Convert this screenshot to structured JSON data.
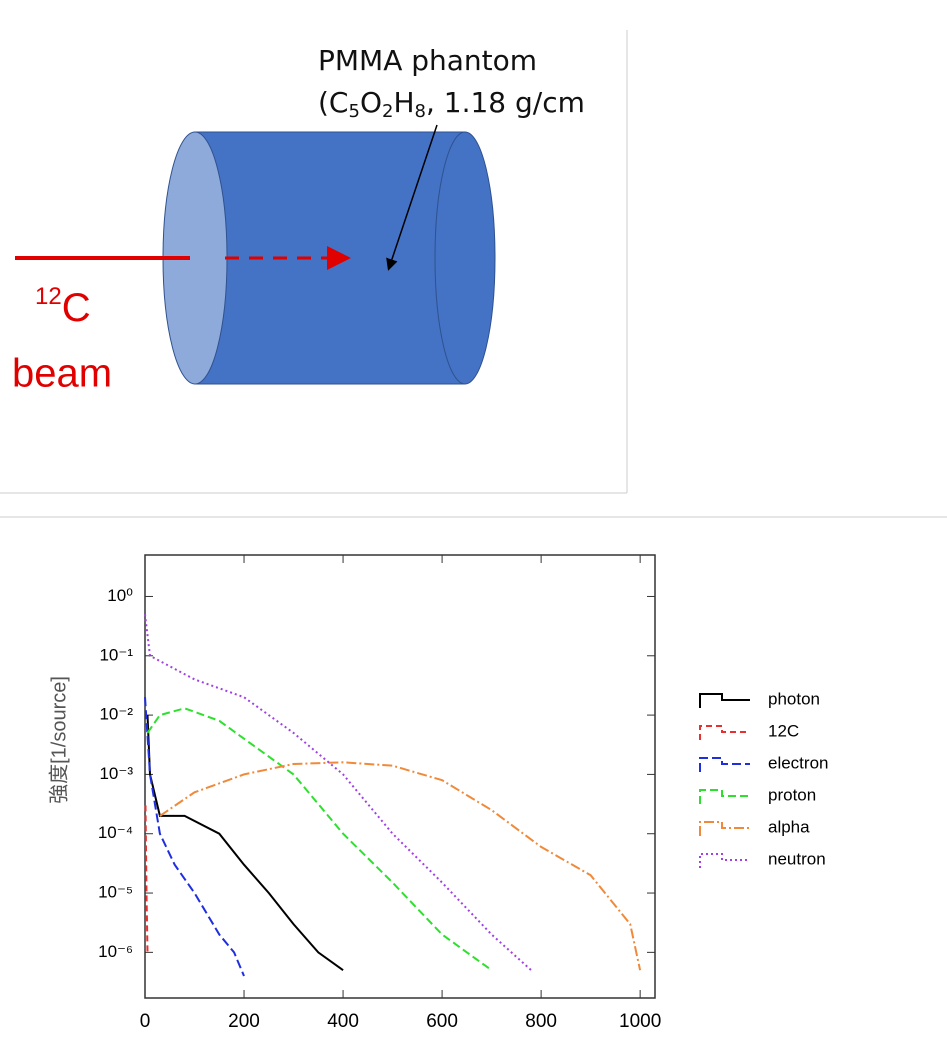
{
  "diagram": {
    "label": "PMMA phantom",
    "formula": [
      "(C",
      "5",
      "O",
      "2",
      "H",
      "8",
      ", 1.18 g/cm"
    ],
    "beam": {
      "mass": "12",
      "symbol": "C",
      "word": "beam"
    }
  },
  "chart_data": {
    "type": "line",
    "y_label": "強度[1/source]",
    "log_y": true,
    "legend": "right",
    "xlim": [
      0,
      1030
    ],
    "ylim": [
      1.7e-07,
      5
    ],
    "xticks": [
      0,
      200,
      400,
      600,
      800,
      1000
    ],
    "yticks": [
      {
        "value": 1e-06,
        "label": "10⁻⁶"
      },
      {
        "value": 1e-05,
        "label": "10⁻⁵"
      },
      {
        "value": 0.0001,
        "label": "10⁻⁴"
      },
      {
        "value": 0.001,
        "label": "10⁻³"
      },
      {
        "value": 0.01,
        "label": "10⁻²"
      },
      {
        "value": 0.1,
        "label": "10⁻¹"
      },
      {
        "value": 1,
        "label": "10⁰"
      }
    ],
    "series": [
      {
        "name": "photon",
        "color": "#000000",
        "dash": "none",
        "x": [
          5,
          10,
          30,
          80,
          150,
          200,
          250,
          300,
          350,
          400
        ],
        "values": [
          0.01,
          0.001,
          0.0002,
          0.0002,
          0.0001,
          3e-05,
          1e-05,
          3e-06,
          1e-06,
          5e-07
        ]
      },
      {
        "name": "12C",
        "color": "#e83030",
        "dash": "6 4",
        "x": [
          1,
          3,
          5
        ],
        "values": [
          0.0003,
          1e-05,
          1e-06
        ]
      },
      {
        "name": "electron",
        "color": "#1f2fe0",
        "dash": "9 4",
        "x": [
          0,
          10,
          30,
          60,
          100,
          150,
          180,
          200
        ],
        "values": [
          0.02,
          0.001,
          0.0001,
          3e-05,
          1e-05,
          2e-06,
          1e-06,
          4e-07
        ]
      },
      {
        "name": "proton",
        "color": "#2ee02e",
        "dash": "8 4",
        "x": [
          5,
          30,
          80,
          150,
          200,
          300,
          400,
          500,
          600,
          700
        ],
        "values": [
          0.005,
          0.01,
          0.013,
          0.008,
          0.004,
          0.001,
          0.0001,
          1.5e-05,
          2e-06,
          5e-07
        ]
      },
      {
        "name": "alpha",
        "color": "#f08a3a",
        "dash": "10 3 2 3",
        "x": [
          30,
          100,
          200,
          300,
          400,
          500,
          600,
          700,
          800,
          900,
          980,
          1000
        ],
        "values": [
          0.0002,
          0.0005,
          0.001,
          0.0015,
          0.0016,
          0.0014,
          0.0008,
          0.00025,
          6e-05,
          2e-05,
          3e-06,
          5e-07
        ]
      },
      {
        "name": "neutron",
        "color": "#a040e8",
        "dash": "2 3",
        "x": [
          0,
          10,
          100,
          200,
          300,
          400,
          500,
          600,
          700,
          780
        ],
        "values": [
          0.5,
          0.1,
          0.04,
          0.02,
          0.005,
          0.001,
          0.0001,
          1.5e-05,
          2e-06,
          5e-07
        ]
      }
    ]
  }
}
